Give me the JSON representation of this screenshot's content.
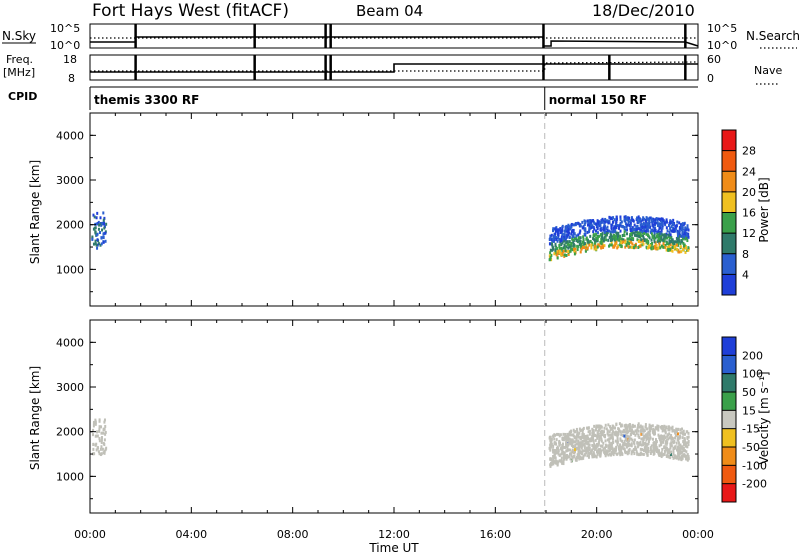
{
  "header": {
    "radar": "Fort Hays West (fitACF)",
    "beam": "Beam 04",
    "date": "18/Dec/2010"
  },
  "noise_panel": {
    "left_label": "N.Sky",
    "right_label": "N.Search",
    "left_ticks": [
      "10^5",
      "10^0"
    ],
    "right_ticks": [
      "10^5",
      "10^0"
    ]
  },
  "freq_panel": {
    "left_label_1": "Freq.",
    "left_label_2": "[MHz]",
    "right_label": "Nave",
    "left_ticks": [
      "18",
      "8"
    ],
    "right_ticks": [
      "60",
      "0"
    ]
  },
  "cpid": {
    "label": "CPID",
    "segments": [
      {
        "name": "themis 3300 RF",
        "start": 0.0,
        "end": 17.95
      },
      {
        "name": "normal 150 RF",
        "start": 17.95,
        "end": 24.0
      }
    ]
  },
  "colors": {
    "power_scale": [
      "#1f3fd8",
      "#2a5fd0",
      "#2f7a6a",
      "#3aa04a",
      "#f0c020",
      "#f08c18",
      "#f05a10",
      "#e81818"
    ],
    "velocity_scale": [
      "#e81818",
      "#f05a10",
      "#f08c18",
      "#f0c020",
      "#c8c8c0",
      "#3aa04a",
      "#2f7a6a",
      "#2a5fd0",
      "#1f3fd8"
    ],
    "ground_scatter": "#c0c0b8"
  },
  "chart_data": [
    {
      "type": "heatmap",
      "name": "power",
      "ylabel": "Slant Range [km]",
      "xlabel": "Time UT",
      "xlim": [
        0,
        24
      ],
      "ylim": [
        180,
        4500
      ],
      "x_ticks": [
        "00:00",
        "04:00",
        "08:00",
        "12:00",
        "16:00",
        "20:00",
        "00:00"
      ],
      "y_ticks": [
        1000,
        2000,
        3000,
        4000
      ],
      "colorbar_label": "Power [dB]",
      "colorbar_ticks": [
        "4",
        "8",
        "12",
        "16",
        "20",
        "24",
        "28"
      ],
      "mode_change_time": 17.95,
      "scatter_regions": [
        {
          "t_start": 0.05,
          "t_end": 0.6,
          "r_low": 1500,
          "r_high": 2300,
          "level": 1
        },
        {
          "t_start": 18.1,
          "t_end": 23.6,
          "r_low": 1200,
          "r_high": 2200,
          "level": 3
        }
      ]
    },
    {
      "type": "heatmap",
      "name": "velocity",
      "ylabel": "Slant Range [km]",
      "xlabel": "Time UT",
      "xlim": [
        0,
        24
      ],
      "ylim": [
        180,
        4500
      ],
      "x_ticks": [
        "00:00",
        "04:00",
        "08:00",
        "12:00",
        "16:00",
        "20:00",
        "00:00"
      ],
      "y_ticks": [
        1000,
        2000,
        3000,
        4000
      ],
      "colorbar_label": "Velocity [m s⁻¹]",
      "colorbar_ticks": [
        "200",
        "100",
        "50",
        "15",
        "-15",
        "-50",
        "-100",
        "-200"
      ],
      "mode_change_time": 17.95,
      "scatter_regions": [
        {
          "t_start": 0.05,
          "t_end": 0.6,
          "r_low": 1500,
          "r_high": 2300,
          "level": 4
        },
        {
          "t_start": 18.1,
          "t_end": 23.6,
          "r_low": 1200,
          "r_high": 2200,
          "level": 4
        }
      ]
    }
  ]
}
